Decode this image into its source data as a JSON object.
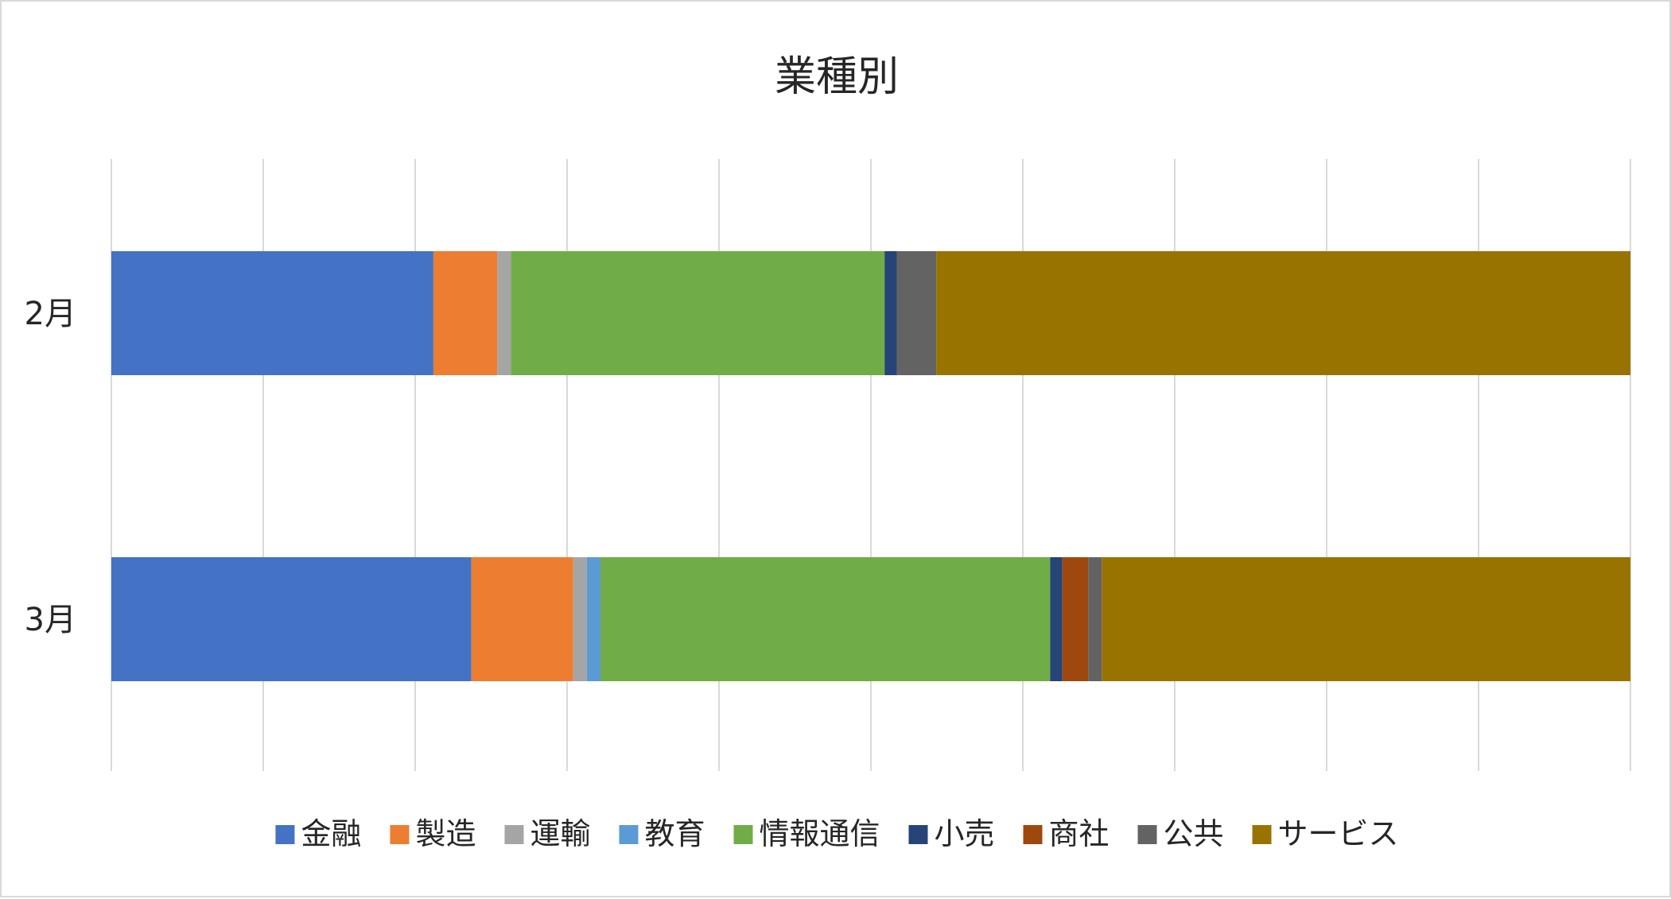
{
  "chart_data": {
    "type": "bar",
    "orientation": "horizontal",
    "stacked": true,
    "normalized": true,
    "title": "業種別",
    "xlabel": "",
    "ylabel": "",
    "xlim": [
      0,
      100
    ],
    "grid": true,
    "legend_position": "bottom",
    "categories": [
      "2月",
      "3月"
    ],
    "series": [
      {
        "name": "金融",
        "color": "#4472C4",
        "values": [
          21.2,
          23.7
        ]
      },
      {
        "name": "製造",
        "color": "#ED7D31",
        "values": [
          4.2,
          6.7
        ]
      },
      {
        "name": "運輸",
        "color": "#A5A5A5",
        "values": [
          0.9,
          0.9
        ]
      },
      {
        "name": "教育",
        "color": "#5B9BD5",
        "values": [
          0.0,
          0.9
        ]
      },
      {
        "name": "情報通信",
        "color": "#70AD47",
        "values": [
          24.6,
          29.6
        ]
      },
      {
        "name": "小売",
        "color": "#264478",
        "values": [
          0.8,
          0.8
        ]
      },
      {
        "name": "商社",
        "color": "#9E480E",
        "values": [
          0.0,
          1.7
        ]
      },
      {
        "name": "公共",
        "color": "#636363",
        "values": [
          2.6,
          0.9
        ]
      },
      {
        "name": "サービス",
        "color": "#997300",
        "values": [
          45.7,
          34.8
        ]
      }
    ]
  }
}
